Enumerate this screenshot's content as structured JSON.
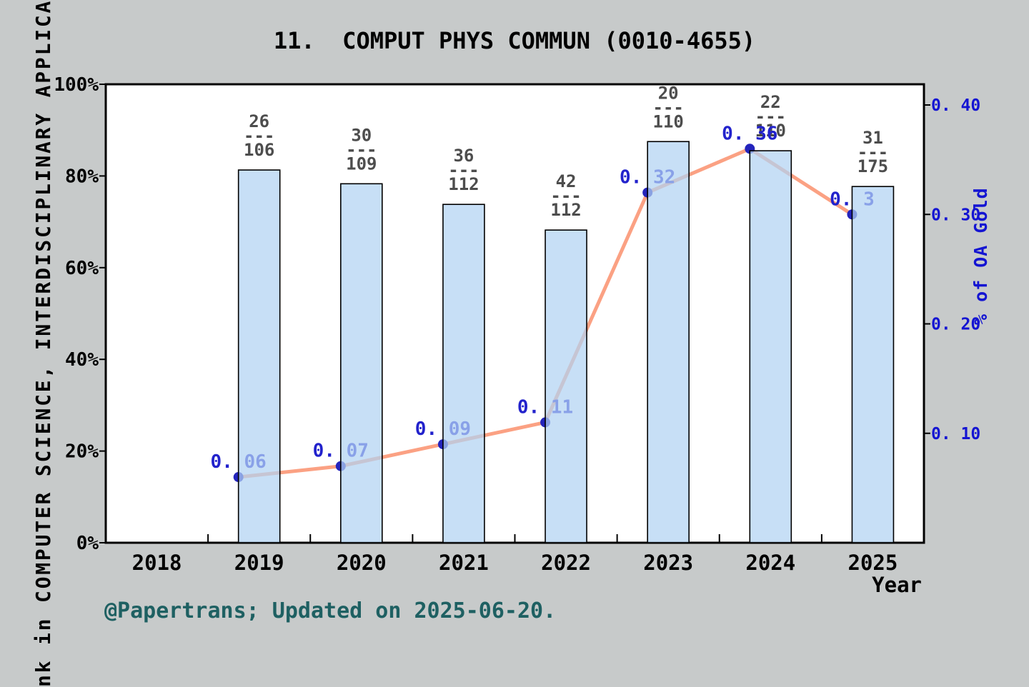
{
  "page": {
    "title": "11.  COMPUT PHYS COMMUN (0010-4655)",
    "left_axis_label_visible": "nk in COMPUTER SCIENCE, INTERDISCIPLINARY APPLICAT",
    "right_axis_label": "% of OA Gold",
    "x_axis_label": "Year",
    "footer": "@Papertrans; Updated on 2025-06-20."
  },
  "colors": {
    "background": "#c7caca",
    "plot_background": "#ffffff",
    "axis": "#000000",
    "axis_text": "#000000",
    "bar_fill": "#b1d3f2",
    "bar_fill_opacity": 0.72,
    "bar_stroke": "#000000",
    "line": "#fba183",
    "marker": "#2424bc",
    "value_label": "#2222cc",
    "fraction_label": "#4d4d4d",
    "right_axis_text": "#1414d2",
    "footer_text": "#1e6062"
  },
  "chart_data": {
    "type": "bar+line",
    "title": "11.  COMPUT PHYS COMMUN (0010-4655)",
    "categories": [
      "2018",
      "2019",
      "2020",
      "2021",
      "2022",
      "2023",
      "2024",
      "2025"
    ],
    "left_axis": {
      "ticks": [
        "0%",
        "20%",
        "40%",
        "60%",
        "80%",
        "100%"
      ],
      "tick_values": [
        0,
        20,
        40,
        60,
        80,
        100
      ],
      "range": [
        0,
        100
      ]
    },
    "right_axis": {
      "label": "% of OA Gold",
      "ticks": [
        "0. 10",
        "0. 20",
        "0. 30",
        "0. 40"
      ],
      "tick_values": [
        0.1,
        0.2,
        0.3,
        0.4
      ],
      "range": [
        0,
        0.419
      ]
    },
    "bars": [
      {
        "category": "2019",
        "fraction_numerator": "26",
        "fraction_denominator": "106",
        "height_pct": 81.3
      },
      {
        "category": "2020",
        "fraction_numerator": "30",
        "fraction_denominator": "109",
        "height_pct": 78.3
      },
      {
        "category": "2021",
        "fraction_numerator": "36",
        "fraction_denominator": "112",
        "height_pct": 73.8
      },
      {
        "category": "2022",
        "fraction_numerator": "42",
        "fraction_denominator": "112",
        "height_pct": 68.2
      },
      {
        "category": "2023",
        "fraction_numerator": "20",
        "fraction_denominator": "110",
        "height_pct": 87.5
      },
      {
        "category": "2024",
        "fraction_numerator": "22",
        "fraction_denominator": "110",
        "height_pct": 85.5
      },
      {
        "category": "2025",
        "fraction_numerator": "31",
        "fraction_denominator": "175",
        "height_pct": 77.7
      }
    ],
    "line_series": {
      "name": "% of OA Gold",
      "points": [
        {
          "category": "2019",
          "value": 0.06,
          "label": "0. 06"
        },
        {
          "category": "2020",
          "value": 0.07,
          "label": "0. 07"
        },
        {
          "category": "2021",
          "value": 0.09,
          "label": "0. 09"
        },
        {
          "category": "2022",
          "value": 0.11,
          "label": "0. 11"
        },
        {
          "category": "2023",
          "value": 0.32,
          "label": "0. 32"
        },
        {
          "category": "2024",
          "value": 0.36,
          "label": "0. 36"
        },
        {
          "category": "2025",
          "value": 0.3,
          "label": "0. 3"
        }
      ]
    },
    "legend": "none",
    "grid": false
  }
}
